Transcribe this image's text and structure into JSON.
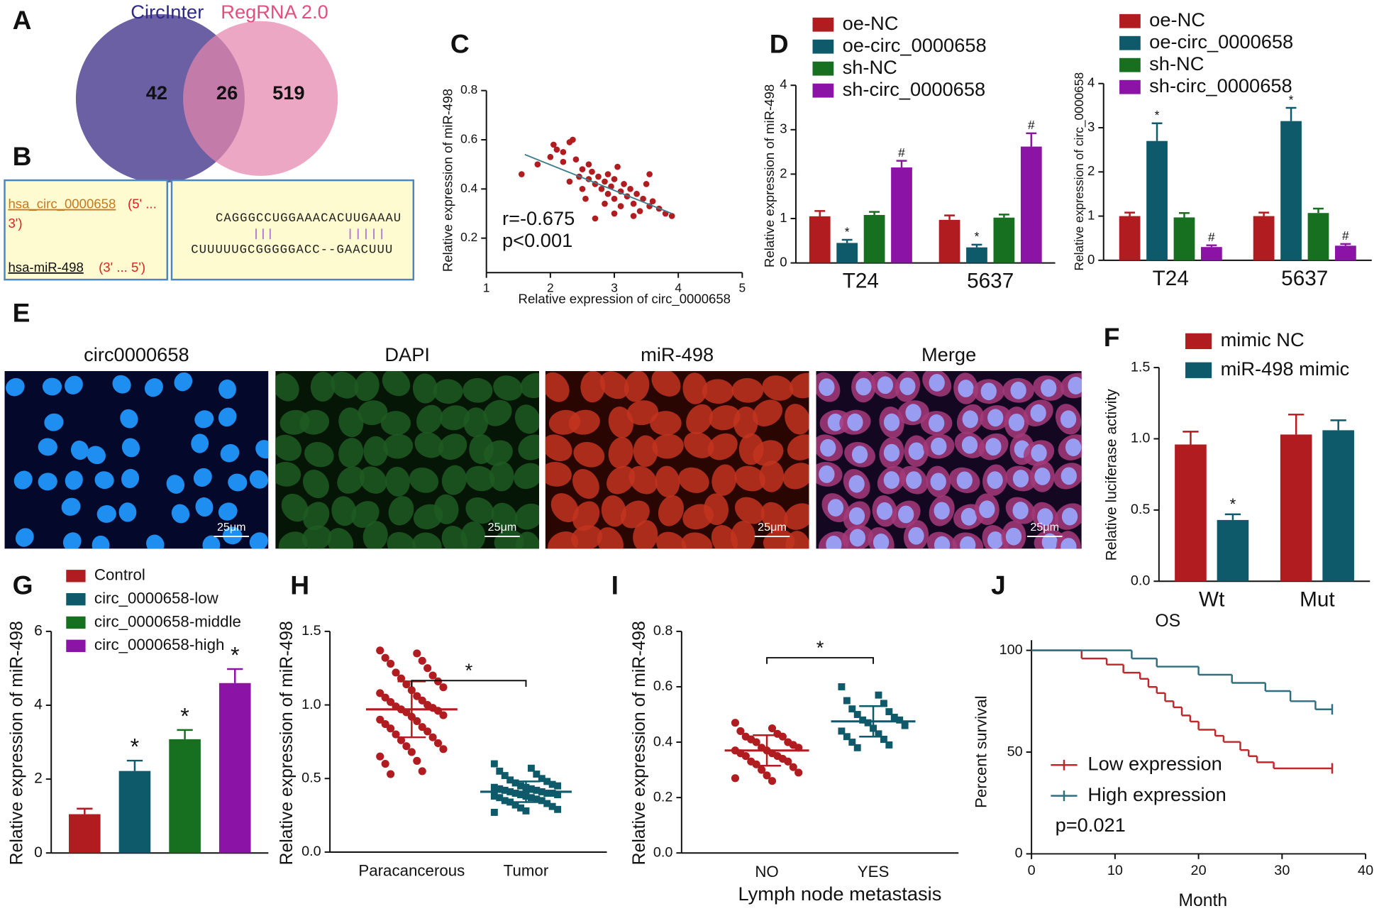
{
  "panel_labels": [
    "A",
    "B",
    "C",
    "D",
    "E",
    "F",
    "G",
    "H",
    "I",
    "J"
  ],
  "venn": {
    "left": {
      "name": "CircInter",
      "color": "#5b4f99"
    },
    "right": {
      "name": "RegRNA 2.0",
      "color": "#e585ad"
    },
    "only_left": 42,
    "both": 26,
    "only_right": 519
  },
  "alignment": {
    "circ_name": "hsa_circ_0000658",
    "circ_dir_lines": [
      "(5' ...",
      "3')"
    ],
    "mir_name": "hsa-miR-498",
    "mir_dir": "(3' ... 5')",
    "top_seq": "CAGGGCCUGGAAACACUUGAAAU",
    "bottom_seq": "CUUUUUGCGGGGGACC--GAACUUU"
  },
  "microscopy": {
    "panels": [
      {
        "title": "circ0000658",
        "scale_bar": "25μm"
      },
      {
        "title": "DAPI",
        "scale_bar": "25μm"
      },
      {
        "title": "miR-498",
        "scale_bar": "25μm"
      },
      {
        "title": "Merge",
        "scale_bar": "25μm"
      }
    ]
  },
  "chart_data": [
    {
      "type": "scatter",
      "xlabel": "Relative expression of circ_0000658",
      "ylabel": "Relative expression of miR-498",
      "color": "#b01c1f",
      "x": [
        1.55,
        1.8,
        2.0,
        2.05,
        2.1,
        2.2,
        2.3,
        2.35,
        2.2,
        2.4,
        2.5,
        2.45,
        2.6,
        2.6,
        2.7,
        2.65,
        2.75,
        2.8,
        2.85,
        2.9,
        2.9,
        2.95,
        3.0,
        3.0,
        3.05,
        3.1,
        3.1,
        3.15,
        3.2,
        3.25,
        3.3,
        3.35,
        3.4,
        3.45,
        3.5,
        3.55,
        3.6,
        3.7,
        3.8,
        3.9,
        2.55,
        2.5,
        2.3,
        2.7,
        3.0,
        3.3,
        2.85,
        3.55
      ],
      "values": [
        0.46,
        0.5,
        0.53,
        0.58,
        0.56,
        0.55,
        0.59,
        0.6,
        0.51,
        0.52,
        0.48,
        0.45,
        0.5,
        0.44,
        0.42,
        0.47,
        0.45,
        0.4,
        0.43,
        0.38,
        0.46,
        0.41,
        0.36,
        0.44,
        0.49,
        0.39,
        0.33,
        0.42,
        0.37,
        0.4,
        0.34,
        0.38,
        0.31,
        0.36,
        0.42,
        0.33,
        0.35,
        0.32,
        0.3,
        0.29,
        0.36,
        0.4,
        0.43,
        0.28,
        0.3,
        0.29,
        0.34,
        0.46
      ],
      "fit": {
        "x": [
          1.6,
          3.9
        ],
        "values": [
          0.54,
          0.3
        ],
        "color": "#3e7d8c"
      },
      "xlim": [
        1,
        5
      ],
      "xticks": [
        1,
        2,
        3,
        4,
        5
      ],
      "ylim": [
        0.06,
        0.8
      ],
      "yticks": [
        0.2,
        0.4,
        0.6,
        0.8
      ],
      "annotations": [
        "r=-0.675",
        "p<0.001"
      ]
    },
    {
      "type": "bar",
      "ylabel": "Relative expression of miR-498",
      "categories": [
        "T24",
        "5637"
      ],
      "series": [
        {
          "name": "oe-NC",
          "color": "#b01c1f",
          "values": [
            1.05,
            0.97
          ],
          "error": [
            0.12,
            0.1
          ]
        },
        {
          "name": "oe-circ_0000658",
          "color": "#0e5a6a",
          "values": [
            0.45,
            0.35
          ],
          "error": [
            0.07,
            0.06
          ],
          "sig": [
            "*",
            "*"
          ]
        },
        {
          "name": "sh-NC",
          "color": "#17701f",
          "values": [
            1.08,
            1.02
          ],
          "error": [
            0.07,
            0.07
          ]
        },
        {
          "name": "sh-circ_0000658",
          "color": "#8b14a6",
          "values": [
            2.15,
            2.62
          ],
          "error": [
            0.15,
            0.3
          ],
          "sig": [
            "#",
            "#"
          ]
        }
      ],
      "ylim": [
        0,
        4
      ],
      "yticks": [
        0,
        1,
        2,
        3,
        4
      ]
    },
    {
      "type": "bar",
      "ylabel": "Relative expression of circ_0000658",
      "categories": [
        "T24",
        "5637"
      ],
      "series": [
        {
          "name": "oe-NC",
          "color": "#b01c1f",
          "values": [
            1.0,
            1.0
          ],
          "error": [
            0.08,
            0.08
          ]
        },
        {
          "name": "oe-circ_0000658",
          "color": "#0e5a6a",
          "values": [
            2.7,
            3.15
          ],
          "error": [
            0.4,
            0.3
          ],
          "sig": [
            "*",
            "*"
          ]
        },
        {
          "name": "sh-NC",
          "color": "#17701f",
          "values": [
            0.97,
            1.07
          ],
          "error": [
            0.1,
            0.1
          ]
        },
        {
          "name": "sh-circ_0000658",
          "color": "#8b14a6",
          "values": [
            0.3,
            0.33
          ],
          "error": [
            0.04,
            0.04
          ],
          "sig": [
            "#",
            "#"
          ]
        }
      ],
      "ylim": [
        0,
        4
      ],
      "yticks": [
        0,
        1,
        2,
        3,
        4
      ]
    },
    {
      "type": "bar",
      "ylabel": "Relative luciferase activity",
      "categories": [
        "Wt",
        "Mut"
      ],
      "series": [
        {
          "name": "mimic NC",
          "color": "#b01c1f",
          "values": [
            0.96,
            1.03
          ],
          "error": [
            0.09,
            0.14
          ]
        },
        {
          "name": "miR-498 mimic",
          "color": "#0e5a6a",
          "values": [
            0.43,
            1.06
          ],
          "error": [
            0.04,
            0.07
          ],
          "sig": [
            "*",
            null
          ]
        }
      ],
      "ylim": [
        0,
        1.5
      ],
      "yticks": [
        {
          "value": 0,
          "label": "0.0"
        },
        0.5,
        {
          "value": 1,
          "label": "1.0"
        },
        1.5
      ]
    },
    {
      "type": "bar",
      "ylabel": "Relative expression of miR-498",
      "categories": [
        null
      ],
      "series": [
        {
          "name": "Control",
          "color": "#b01c1f",
          "values": [
            1.05
          ],
          "error": [
            0.15
          ]
        },
        {
          "name": "circ_0000658-low",
          "color": "#0e5a6a",
          "values": [
            2.22
          ],
          "error": [
            0.28
          ],
          "sig": [
            "*"
          ]
        },
        {
          "name": "circ_0000658-middle",
          "color": "#17701f",
          "values": [
            3.08
          ],
          "error": [
            0.25
          ],
          "sig": [
            "*"
          ]
        },
        {
          "name": "circ_0000658-high",
          "color": "#8b14a6",
          "values": [
            4.6
          ],
          "error": [
            0.38
          ],
          "sig": [
            "*"
          ]
        }
      ],
      "ylim": [
        0,
        6
      ],
      "yticks": [
        0,
        2,
        4,
        6
      ]
    },
    {
      "type": "strip",
      "ylabel": "Relative expression of miR-498",
      "categories": [
        "Paracancerous",
        "Tumor"
      ],
      "series": [
        {
          "color": "#b01c1f",
          "marker": "circle",
          "values": [
            1.37,
            1.35,
            1.32,
            1.3,
            1.28,
            1.25,
            1.22,
            1.2,
            1.18,
            1.16,
            1.14,
            1.12,
            1.1,
            1.08,
            1.06,
            1.05,
            1.03,
            1.02,
            1.0,
            0.99,
            0.98,
            0.97,
            0.96,
            0.95,
            0.93,
            0.92,
            0.9,
            0.89,
            0.87,
            0.85,
            0.84,
            0.82,
            0.8,
            0.78,
            0.76,
            0.74,
            0.72,
            0.7,
            0.68,
            0.65,
            0.62,
            0.6,
            0.55,
            0.53
          ],
          "mean": 0.97,
          "sd": 0.19
        },
        {
          "color": "#0e5a6a",
          "marker": "square",
          "values": [
            0.6,
            0.57,
            0.55,
            0.53,
            0.52,
            0.5,
            0.49,
            0.48,
            0.47,
            0.46,
            0.45,
            0.45,
            0.44,
            0.44,
            0.43,
            0.43,
            0.42,
            0.42,
            0.41,
            0.41,
            0.4,
            0.4,
            0.4,
            0.39,
            0.39,
            0.38,
            0.38,
            0.37,
            0.37,
            0.36,
            0.35,
            0.35,
            0.34,
            0.33,
            0.32,
            0.31,
            0.3,
            0.29,
            0.28,
            0.27
          ],
          "mean": 0.41,
          "sd": 0.07
        }
      ],
      "significance": "*",
      "ylim": [
        0,
        1.5
      ],
      "yticks": [
        {
          "value": 0,
          "label": "0.0"
        },
        0.5,
        {
          "value": 1,
          "label": "1.0"
        },
        1.5
      ]
    },
    {
      "type": "strip",
      "ylabel": "Relative expression of miR-498",
      "xlabel": "Lymph node metastasis",
      "categories": [
        "NO",
        "YES"
      ],
      "series": [
        {
          "color": "#b01c1f",
          "marker": "circle",
          "values": [
            0.47,
            0.45,
            0.44,
            0.43,
            0.42,
            0.42,
            0.41,
            0.4,
            0.4,
            0.39,
            0.38,
            0.38,
            0.37,
            0.37,
            0.36,
            0.36,
            0.35,
            0.35,
            0.34,
            0.33,
            0.33,
            0.32,
            0.31,
            0.3,
            0.29,
            0.28,
            0.27,
            0.26
          ],
          "mean": 0.37,
          "sd": 0.055
        },
        {
          "color": "#0e5a6a",
          "marker": "square",
          "values": [
            0.6,
            0.57,
            0.55,
            0.54,
            0.52,
            0.51,
            0.5,
            0.49,
            0.48,
            0.48,
            0.47,
            0.46,
            0.45,
            0.44,
            0.43,
            0.42,
            0.41,
            0.4,
            0.39,
            0.38
          ],
          "mean": 0.475,
          "sd": 0.055
        }
      ],
      "significance": "*",
      "ylim": [
        0,
        0.8
      ],
      "yticks": [
        {
          "value": 0,
          "label": "0.0"
        },
        0.2,
        0.4,
        0.6,
        0.8
      ]
    },
    {
      "type": "survival",
      "title": "OS",
      "xlabel": "Month",
      "ylabel": "Percent survival",
      "series": [
        {
          "name": "Low expression",
          "color": "#c0272d",
          "x": [
            0,
            6,
            9,
            11,
            13,
            14,
            15,
            16,
            17,
            18,
            19,
            20,
            22,
            23,
            25,
            26,
            27,
            29,
            36
          ],
          "values": [
            100,
            96,
            93,
            89,
            86,
            82,
            79,
            75,
            72,
            68,
            65,
            61,
            58,
            55,
            51,
            48,
            45,
            42,
            42
          ]
        },
        {
          "name": "High expression",
          "color": "#2f6f80",
          "x": [
            0,
            12,
            15,
            20,
            24,
            28,
            31,
            34,
            36
          ],
          "values": [
            100,
            96,
            92,
            88,
            84,
            80,
            75,
            71,
            71
          ]
        }
      ],
      "annotations": [
        "p=0.021"
      ],
      "xlim": [
        0,
        40
      ],
      "xticks": [
        0,
        10,
        20,
        30,
        40
      ],
      "ylim": [
        0,
        105
      ],
      "yticks": [
        0,
        50,
        100
      ]
    }
  ]
}
